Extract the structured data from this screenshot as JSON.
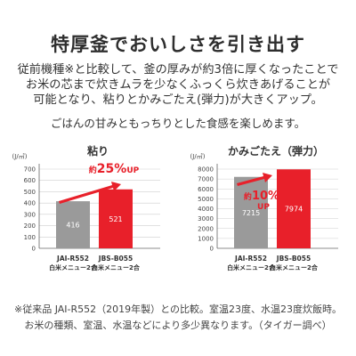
{
  "headline": "特厚釜でおいしさを引き出す",
  "intro": [
    "従前機種※と比較して、釜の厚みが約3倍に厚くなったことで",
    "お米の芯まで炊きムラを少なくふっくら炊きあげることが",
    "可能となり、粘りとかみごたえ(弾力)が大きくアップ。"
  ],
  "subline": "ごはんの甘みともっちりとした食感を楽しめます。",
  "colors": {
    "old_bar": "#9a9a9a",
    "new_bar": "#e8202a",
    "accent": "#e8202a"
  },
  "chart_data": [
    {
      "type": "bar",
      "title": "粘り",
      "ylabel": "(J/㎥)",
      "ylim": [
        0,
        700
      ],
      "yticks": [
        "0",
        "100",
        "200",
        "300",
        "400",
        "500",
        "600",
        "700"
      ],
      "categories": [
        [
          "JAI-R552",
          "白米メニュー2合"
        ],
        [
          "JBS-B055",
          "白米メニュー2合"
        ]
      ],
      "values": [
        416,
        521
      ],
      "value_labels": [
        "416",
        "521"
      ],
      "annotation": {
        "prefix": "約",
        "number": "25%",
        "suffix": "UP"
      }
    },
    {
      "type": "bar",
      "title": "かみごたえ（弾力）",
      "ylabel": "(J/㎥)",
      "ylim": [
        0,
        8000
      ],
      "yticks": [
        "0",
        "1000",
        "2000",
        "3000",
        "4000",
        "5000",
        "6000",
        "7000",
        "8000"
      ],
      "categories": [
        [
          "JAI-R552",
          "白米メニュー2合"
        ],
        [
          "JBS-B055",
          "白米メニュー2合"
        ]
      ],
      "values": [
        7215,
        7974
      ],
      "value_labels": [
        "7215",
        "7974"
      ],
      "annotation": {
        "prefix": "約",
        "number": "10%",
        "suffix": "UP"
      }
    }
  ],
  "footnotes": [
    "※従来品 JAI-R552（2019年製）との比較。室温23度、水温23度炊飯時。",
    "お米の種類、室温、水温などにより多少異なります。（タイガー調べ）"
  ]
}
